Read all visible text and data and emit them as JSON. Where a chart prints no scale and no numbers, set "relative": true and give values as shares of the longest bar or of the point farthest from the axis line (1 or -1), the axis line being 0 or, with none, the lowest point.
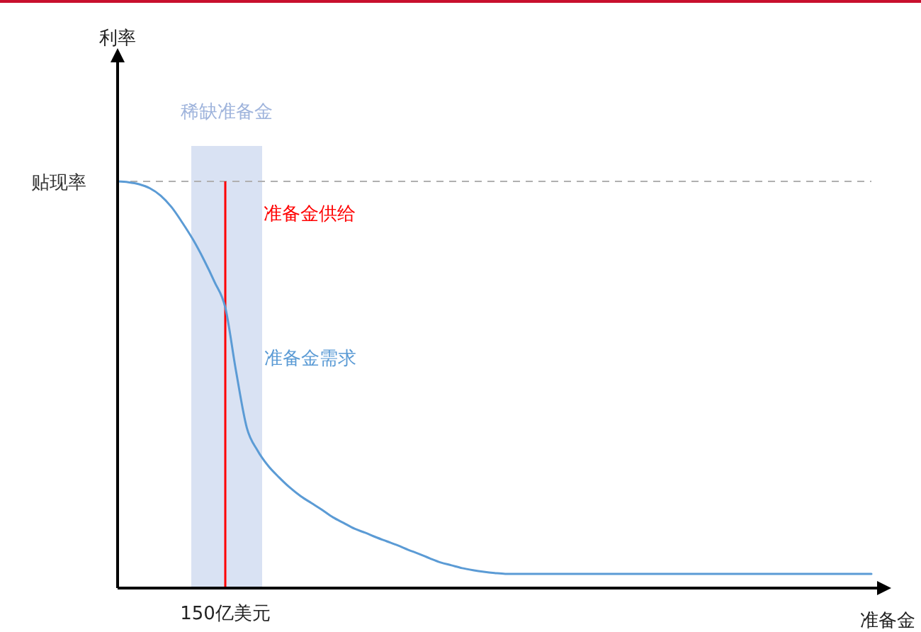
{
  "chart_data": {
    "type": "line",
    "relative": true,
    "xlabel": "准备金",
    "categories": [
      null,
      null,
      null,
      null,
      null,
      null,
      null,
      null,
      null,
      null,
      null,
      null,
      null,
      null,
      null,
      null,
      null,
      null,
      null,
      null,
      null,
      null,
      null,
      null,
      null,
      null,
      null,
      null,
      null,
      null,
      null,
      null,
      null,
      null,
      null,
      null,
      null,
      null,
      null,
      null,
      null,
      null,
      null,
      null,
      null,
      null,
      null,
      null,
      null,
      null,
      null,
      null,
      null,
      null,
      null,
      null,
      null,
      null,
      null,
      null,
      null,
      null,
      null,
      null,
      null,
      null,
      null,
      null,
      null,
      null,
      null
    ],
    "series": [
      {
        "name": "准备金需求",
        "color": "#5b9bd5",
        "values": [
          1.0,
          0.998,
          0.993,
          0.983,
          0.965,
          0.937,
          0.899,
          0.857,
          0.808,
          0.753,
          0.69,
          0.533,
          0.394,
          0.338,
          0.3,
          0.272,
          0.247,
          0.226,
          0.209,
          0.192,
          0.174,
          0.16,
          0.146,
          0.136,
          0.125,
          0.115,
          0.105,
          0.094,
          0.084,
          0.073,
          0.063,
          0.056,
          0.049,
          0.044,
          0.04,
          0.037,
          0.035,
          0.035,
          0.035,
          0.035,
          0.035,
          0.035,
          0.035,
          0.035,
          0.035,
          0.035,
          0.035,
          0.035,
          0.035,
          0.035,
          0.035,
          0.035,
          0.035,
          0.035,
          0.035,
          0.035,
          0.035,
          0.035,
          0.035,
          0.035,
          0.035,
          0.035,
          0.035,
          0.035,
          0.035,
          0.035,
          0.035,
          0.035,
          0.035,
          0.035,
          0.035
        ]
      }
    ],
    "ref_lines": [
      {
        "axis": "y",
        "value": 1,
        "label": "贴现率",
        "color": "#b0b0b0",
        "line_style": "dashed"
      }
    ],
    "annotations": [
      "稀缺准备金",
      "准备金供给",
      "150亿美元",
      "利率"
    ]
  }
}
